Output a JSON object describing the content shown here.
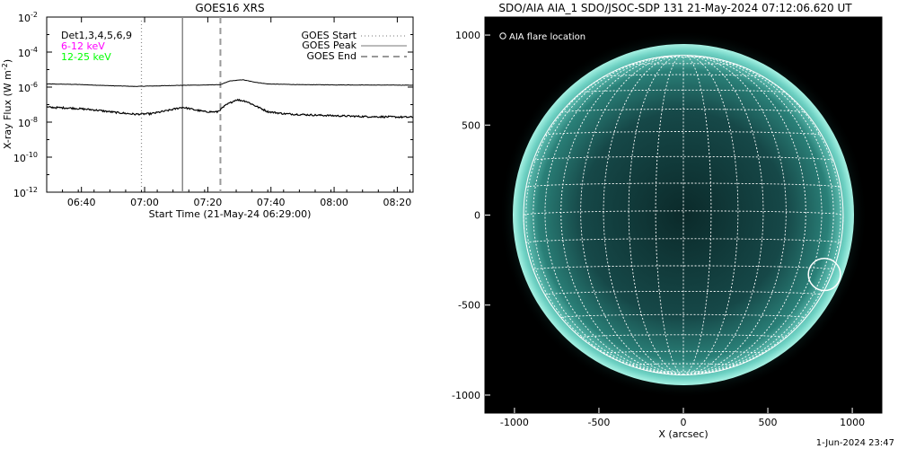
{
  "left_panel": {
    "title": "GOES16 XRS",
    "xlabel": "Start Time (21-May-24 06:29:00)",
    "ylabel_parts": [
      "X-ray Flux (W m",
      "-2",
      ")"
    ],
    "info_lines": [
      {
        "text": "Det1,3,4,5,6,9",
        "color": "#000000"
      },
      {
        "text": "6-12 keV",
        "color": "#ff00ff"
      },
      {
        "text": "12-25 keV",
        "color": "#00ff00"
      }
    ],
    "legend": [
      {
        "label": "GOES Start",
        "style": "dotted"
      },
      {
        "label": "GOES Peak",
        "style": "solid"
      },
      {
        "label": "GOES End",
        "style": "dashed"
      }
    ]
  },
  "right_panel": {
    "title": "SDO/AIA AIA_1 SDO/JSOC-SDP 131 21-May-2024 07:12:06.620 UT",
    "legend_label": "AIA flare location",
    "xlabel": "X (arcsec)",
    "colors": {
      "sun_core": "#0c2e2e",
      "sun_limb": "#8fe8d8",
      "grid": "#ffffff",
      "background": "#000000"
    }
  },
  "footer": "1-Jun-2024 23:47",
  "chart_data": [
    {
      "type": "line",
      "x_unit": "minutes since 06:29:00",
      "xlim": [
        0,
        116
      ],
      "ylim_log10": [
        -12,
        -2
      ],
      "y_scale": "log",
      "x_ticks": [
        {
          "label": "06:40",
          "value": 11
        },
        {
          "label": "07:00",
          "value": 31
        },
        {
          "label": "07:20",
          "value": 51
        },
        {
          "label": "07:40",
          "value": 71
        },
        {
          "label": "08:00",
          "value": 91
        },
        {
          "label": "08:20",
          "value": 111
        }
      ],
      "y_ticks": [
        {
          "base": "10",
          "exp": "-2",
          "value": -2
        },
        {
          "base": "10",
          "exp": "-4",
          "value": -4
        },
        {
          "base": "10",
          "exp": "-6",
          "value": -6
        },
        {
          "base": "10",
          "exp": "-8",
          "value": -8
        },
        {
          "base": "10",
          "exp": "-10",
          "value": -10
        },
        {
          "base": "10",
          "exp": "-12",
          "value": -12
        }
      ],
      "events": {
        "start": 30,
        "peak": 43,
        "end": 55
      },
      "series": [
        {
          "name": "upper",
          "noise": 0.01,
          "points": [
            [
              0,
              -5.82
            ],
            [
              10,
              -5.85
            ],
            [
              20,
              -5.92
            ],
            [
              28,
              -5.96
            ],
            [
              35,
              -5.93
            ],
            [
              42,
              -5.9
            ],
            [
              50,
              -5.88
            ],
            [
              55,
              -5.86
            ],
            [
              58,
              -5.65
            ],
            [
              62,
              -5.58
            ],
            [
              66,
              -5.72
            ],
            [
              70,
              -5.82
            ],
            [
              80,
              -5.86
            ],
            [
              100,
              -5.88
            ],
            [
              116,
              -5.89
            ]
          ]
        },
        {
          "name": "lower",
          "noise": 0.05,
          "points": [
            [
              0,
              -7.15
            ],
            [
              8,
              -7.2
            ],
            [
              15,
              -7.3
            ],
            [
              22,
              -7.45
            ],
            [
              28,
              -7.55
            ],
            [
              33,
              -7.52
            ],
            [
              38,
              -7.35
            ],
            [
              43,
              -7.15
            ],
            [
              47,
              -7.3
            ],
            [
              50,
              -7.4
            ],
            [
              54,
              -7.42
            ],
            [
              57,
              -7.0
            ],
            [
              60,
              -6.72
            ],
            [
              63,
              -6.8
            ],
            [
              67,
              -7.15
            ],
            [
              70,
              -7.4
            ],
            [
              75,
              -7.52
            ],
            [
              85,
              -7.6
            ],
            [
              100,
              -7.68
            ],
            [
              116,
              -7.72
            ]
          ]
        }
      ]
    },
    {
      "type": "scatter",
      "xlim": [
        -1175,
        1175
      ],
      "ylim": [
        -1100,
        1100
      ],
      "x_ticks": [
        {
          "label": "-1000",
          "value": -1000
        },
        {
          "label": "-500",
          "value": -500
        },
        {
          "label": "0",
          "value": 0
        },
        {
          "label": "500",
          "value": 500
        },
        {
          "label": "1000",
          "value": 1000
        }
      ],
      "y_ticks": [
        {
          "label": "1000",
          "value": 1000
        },
        {
          "label": "500",
          "value": 500
        },
        {
          "label": "0",
          "value": 0
        },
        {
          "label": "-500",
          "value": -500
        },
        {
          "label": "-1000",
          "value": -1000
        }
      ],
      "solar_radius": 946,
      "grid_step_deg": 10,
      "flare_location": {
        "x": 835,
        "y": -330,
        "radius": 95
      }
    }
  ]
}
